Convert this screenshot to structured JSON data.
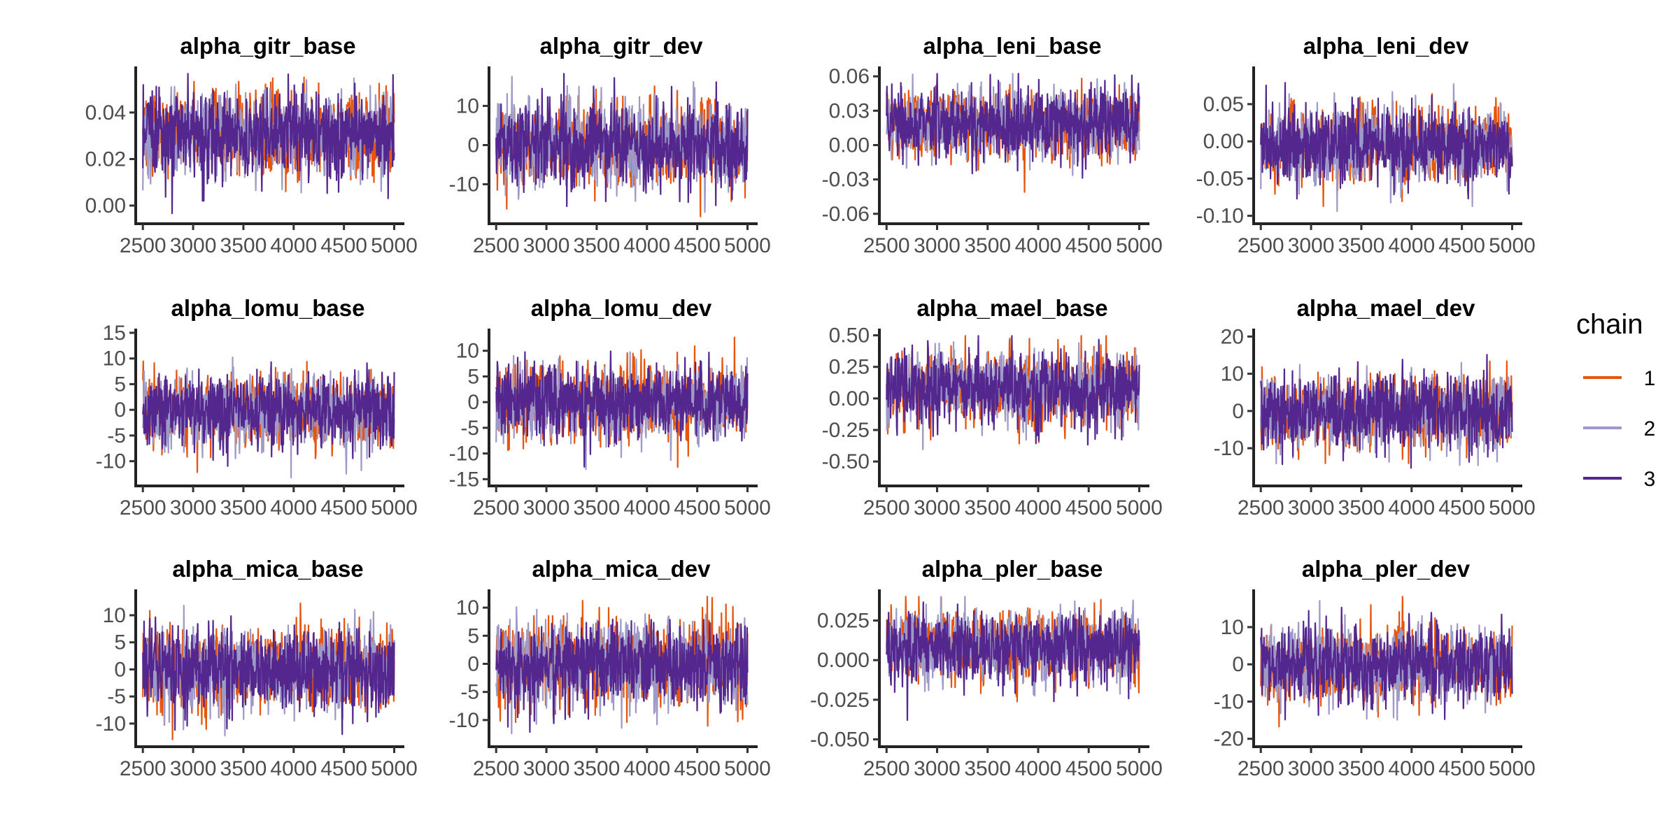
{
  "chart_data": {
    "type": "line",
    "x_ticks": [
      2500,
      3000,
      3500,
      4000,
      4500,
      5000
    ],
    "x_range": [
      2500,
      5000
    ],
    "grid": false,
    "legend": {
      "title": "chain",
      "position": "right",
      "entries": [
        {
          "label": "1",
          "color": "#e6550d"
        },
        {
          "label": "2",
          "color": "#9e9ac8"
        },
        {
          "label": "3",
          "color": "#54278f"
        }
      ]
    },
    "panels": [
      {
        "title": "alpha_gitr_base",
        "y_ticks": [
          0.0,
          0.02,
          0.04
        ],
        "y_tick_labels": [
          "0.00",
          "0.02",
          "0.04"
        ],
        "ylim": [
          -0.006,
          0.058
        ],
        "center": 0.031,
        "spread": 0.009
      },
      {
        "title": "alpha_gitr_dev",
        "y_ticks": [
          -10,
          0,
          10
        ],
        "y_tick_labels": [
          "-10",
          "0",
          "10"
        ],
        "ylim": [
          -19,
          19
        ],
        "center": 0.0,
        "spread": 5.5
      },
      {
        "title": "alpha_leni_base",
        "y_ticks": [
          -0.06,
          -0.03,
          0.0,
          0.03,
          0.06
        ],
        "y_tick_labels": [
          "-0.06",
          "-0.03",
          "0.00",
          "0.03",
          "0.06"
        ],
        "ylim": [
          -0.065,
          0.065
        ],
        "center": 0.018,
        "spread": 0.015
      },
      {
        "title": "alpha_leni_dev",
        "y_ticks": [
          -0.1,
          -0.05,
          0.0,
          0.05
        ],
        "y_tick_labels": [
          "-0.10",
          "-0.05",
          "0.00",
          "0.05"
        ],
        "ylim": [
          -0.105,
          0.095
        ],
        "center": -0.005,
        "spread": 0.025
      },
      {
        "title": "alpha_lomu_base",
        "y_ticks": [
          -10,
          -5,
          0,
          5,
          10,
          15
        ],
        "y_tick_labels": [
          "-10",
          "-5",
          "0",
          "5",
          "10",
          "15"
        ],
        "ylim": [
          -14,
          15
        ],
        "center": 0.0,
        "spread": 3.6
      },
      {
        "title": "alpha_lomu_dev",
        "y_ticks": [
          -15,
          -10,
          -5,
          0,
          5,
          10
        ],
        "y_tick_labels": [
          "-15",
          "-10",
          "-5",
          "0",
          "5",
          "10"
        ],
        "ylim": [
          -15.5,
          13.5
        ],
        "center": 0.0,
        "spread": 3.6
      },
      {
        "title": "alpha_mael_base",
        "y_ticks": [
          -0.5,
          -0.25,
          0.0,
          0.25,
          0.5
        ],
        "y_tick_labels": [
          "-0.50",
          "-0.25",
          "0.00",
          "0.25",
          "0.50"
        ],
        "ylim": [
          -0.66,
          0.52
        ],
        "center": 0.08,
        "spread": 0.14
      },
      {
        "title": "alpha_mael_dev",
        "y_ticks": [
          -10,
          0,
          10,
          20
        ],
        "y_tick_labels": [
          "-10",
          "0",
          "10",
          "20"
        ],
        "ylim": [
          -19,
          21
        ],
        "center": -0.5,
        "spread": 5.0
      },
      {
        "title": "alpha_mica_base",
        "y_ticks": [
          -10,
          -5,
          0,
          5,
          10
        ],
        "y_tick_labels": [
          "-10",
          "-5",
          "0",
          "5",
          "10"
        ],
        "ylim": [
          -13.5,
          14
        ],
        "center": 0.0,
        "spread": 3.8
      },
      {
        "title": "alpha_mica_dev",
        "y_ticks": [
          -10,
          -5,
          0,
          5,
          10
        ],
        "y_tick_labels": [
          "-10",
          "-5",
          "0",
          "5",
          "10"
        ],
        "ylim": [
          -14,
          12.5
        ],
        "center": 0.0,
        "spread": 3.8
      },
      {
        "title": "alpha_pler_base",
        "y_ticks": [
          -0.05,
          -0.025,
          0.0,
          0.025
        ],
        "y_tick_labels": [
          "-0.050",
          "-0.025",
          "0.000",
          "0.025"
        ],
        "ylim": [
          -0.052,
          0.042
        ],
        "center": 0.008,
        "spread": 0.011
      },
      {
        "title": "alpha_pler_dev",
        "y_ticks": [
          -20,
          -10,
          0,
          10
        ],
        "y_tick_labels": [
          "-20",
          "-10",
          "0",
          "10"
        ],
        "ylim": [
          -21,
          19
        ],
        "center": 0.0,
        "spread": 5.0
      }
    ]
  }
}
